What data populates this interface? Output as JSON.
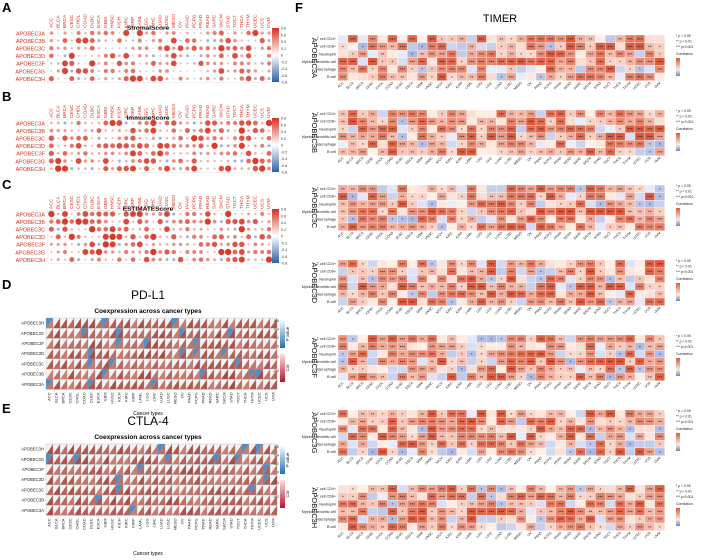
{
  "panels": {
    "A": {
      "letter": "A",
      "title": "StromalScore"
    },
    "B": {
      "letter": "B",
      "title": "ImmuneScore"
    },
    "C": {
      "letter": "C",
      "title": "ESTIMATEScore"
    },
    "D": {
      "letter": "D",
      "title": "PD-L1",
      "subtitle": "Coexpression across cancer types",
      "xlabel": "Cancer types",
      "pvalue_label": "P value",
      "cor_label": "Cor"
    },
    "E": {
      "letter": "E",
      "title": "CTLA-4",
      "subtitle": "Coexpression across cancer types",
      "xlabel": "Cancer types",
      "pvalue_label": "P value",
      "cor_label": "Cor"
    },
    "F": {
      "letter": "F",
      "title": "TIMER"
    }
  },
  "genes": [
    "APOBEC3A",
    "APOBEC3B",
    "APOBEC3C",
    "APOBEC3D",
    "APOBEC3F",
    "APOBEC3G",
    "APOBEC3H"
  ],
  "genes_reversed": [
    "APOBEC3H",
    "APOBEC3G",
    "APOBEC3F",
    "APOBEC3D",
    "APOBEC3C",
    "APOBEC3B",
    "APOBEC3A"
  ],
  "cancers": [
    "ACC",
    "BLCA",
    "BRCA",
    "CESC",
    "CHOL",
    "COAD",
    "DLBC",
    "ESCA",
    "GBM",
    "HNSC",
    "KICH",
    "KIRC",
    "KIRP",
    "LAML",
    "LGG",
    "LIHC",
    "LUAD",
    "LUSC",
    "MESO",
    "OV",
    "PAAD",
    "PCPG",
    "PRAD",
    "READ",
    "SARC",
    "SKCM",
    "STAD",
    "TGCT",
    "THCA",
    "THYM",
    "UCEC",
    "UCS",
    "UVM"
  ],
  "immune_cells": [
    "T cell CD4+",
    "T cell CD8+",
    "Neutrophil",
    "Myeloid dendritic cell",
    "Macrophage",
    "B cell"
  ],
  "legends": {
    "correlation": "Correlation",
    "timer_sig": [
      "* p < 0.05",
      "** p < 0.01",
      "*** p<0.001"
    ],
    "dot_ticks": [
      "0.8",
      "0.6",
      "0.4",
      "0.2",
      "0",
      "-0.2",
      "-0.4",
      "-0.6",
      "-0.8"
    ],
    "p_ticks": [
      "0.6",
      "0.4",
      "0.2",
      "0"
    ],
    "cor_ticks": [
      "0",
      "-0.2"
    ]
  },
  "colors": {
    "pos": "#d7301f",
    "neg": "#2c5fa8",
    "cor_pos": "#b2182b",
    "p_blue": "#4393c3"
  },
  "chart_data": [
    {
      "panel": "A",
      "type": "heatmap",
      "title": "StromalScore",
      "rows": "genes",
      "columns": "cancers",
      "value_range": [
        -0.8,
        0.8
      ],
      "note": "dot size and color encode correlation"
    },
    {
      "panel": "B",
      "type": "heatmap",
      "title": "ImmuneScore",
      "rows": "genes",
      "columns": "cancers",
      "value_range": [
        -0.8,
        0.8
      ]
    },
    {
      "panel": "C",
      "type": "heatmap",
      "title": "ESTIMATEScore",
      "rows": "genes",
      "columns": "cancers",
      "value_range": [
        -0.8,
        0.8
      ]
    },
    {
      "panel": "D",
      "type": "heatmap",
      "title": "PD-L1",
      "subtitle": "Coexpression across cancer types",
      "rows": "genes_reversed",
      "columns": "cancers",
      "cor_range": [
        -0.2,
        0.8
      ],
      "p_range": [
        0,
        0.6
      ]
    },
    {
      "panel": "E",
      "type": "heatmap",
      "title": "CTLA-4",
      "subtitle": "Coexpression across cancer types",
      "rows": "genes_reversed",
      "columns": "cancers",
      "cor_range": [
        -0.2,
        0.8
      ],
      "p_range": [
        0,
        0.6
      ]
    },
    {
      "panel": "F",
      "type": "heatmap",
      "title": "TIMER",
      "blocks": "genes",
      "rows": "immune_cells",
      "columns": "cancers",
      "value_range": [
        -0.2,
        0.6
      ]
    }
  ]
}
